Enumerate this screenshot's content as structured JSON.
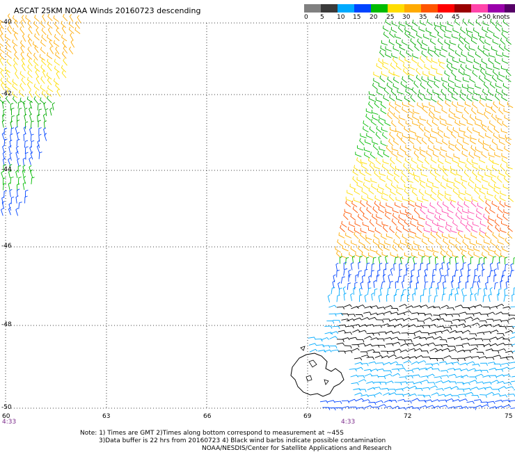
{
  "title": "ASCAT 25KM NOAA Winds 20160723 descending",
  "legend": {
    "colors": [
      "#808080",
      "#3a3a3a",
      "#00aaff",
      "#0044ff",
      "#00bb00",
      "#ffdd00",
      "#ffaa00",
      "#ff5500",
      "#ff0000",
      "#990000",
      "#ff44aa",
      "#9900aa",
      "#550066"
    ],
    "labels": [
      "0",
      "5",
      "10",
      "15",
      "20",
      "25",
      "30",
      "35",
      "40",
      "45",
      ">50 knots"
    ]
  },
  "axes": {
    "latitudes": [
      "-40",
      "-42",
      "-44",
      "-46",
      "-48",
      "-50"
    ],
    "longitudes": [
      "60",
      "63",
      "66",
      "69",
      "72",
      "75"
    ]
  },
  "times": [
    "4:33",
    "4:33"
  ],
  "footer": {
    "line1": "Note: 1) Times are GMT 2)Times along bottom correspond to measurement at ~45S",
    "line2": "3)Data buffer is 22 hrs from 20160723 4) Black wind barbs indicate possible contamination",
    "line3": "NOAA/NESDIS/Center for Satellite Applications and Research"
  },
  "map_features": [
    "Kerguelen Islands"
  ]
}
